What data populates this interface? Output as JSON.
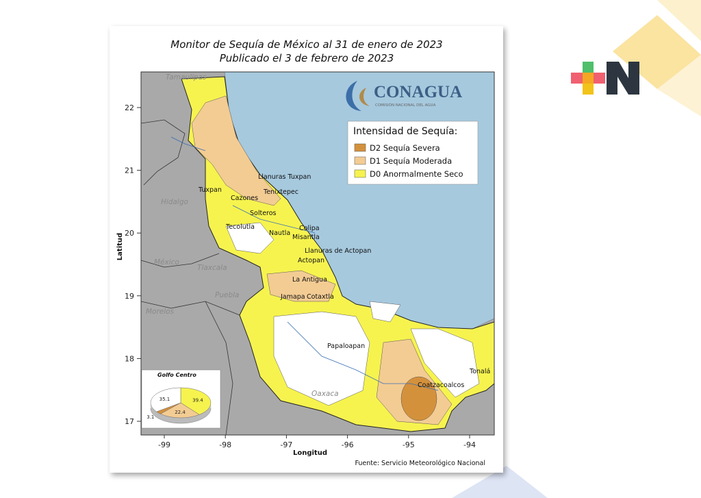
{
  "title": [
    "Monitor de Sequía de México al 31 de enero de 2023",
    "Publicado el 3 de febrero de 2023"
  ],
  "logo": {
    "name": "CONAGUA",
    "subtitle": "COMISIÓN NACIONAL DEL AGUA"
  },
  "legend": {
    "title": "Intensidad de Sequía:",
    "items": [
      {
        "label": "D2 Sequía Severa",
        "color": "#d4913c"
      },
      {
        "label": "D1 Sequía Moderada",
        "color": "#f3cc93"
      },
      {
        "label": "D0 Anormalmente Seco",
        "color": "#f6f34f"
      }
    ]
  },
  "axes": {
    "x_label": "Longitud",
    "y_label": "Latitud",
    "xticks": [
      -99,
      -98,
      -97,
      -96,
      -95,
      -94
    ],
    "yticks": [
      17,
      18,
      19,
      20,
      21,
      22
    ]
  },
  "states": [
    "Tamaulipas",
    "Hidalgo",
    "México",
    "Tlaxcala",
    "Puebla",
    "Morelos",
    "Oaxaca"
  ],
  "places": [
    "Tuxpan",
    "Llanuras Tuxpan",
    "Tenixtepec",
    "Cazones",
    "Solteros",
    "Tecolutla",
    "Colipa",
    "Misantla",
    "Nautla",
    "Llanuras de Actopan",
    "Actopan",
    "La Antigua",
    "Jamapa",
    "Cotaxtla",
    "Papaloapan",
    "Coatzacoalcos",
    "Tonalá"
  ],
  "inset": {
    "title": "Golfo Centro",
    "values": [
      39.4,
      22.4,
      3.1,
      35.1
    ],
    "colors": [
      "#f6f34f",
      "#f3cc93",
      "#d4913c",
      "#ffffff"
    ]
  },
  "source": "Fuente: Servicio Meteorológico Nacional"
}
